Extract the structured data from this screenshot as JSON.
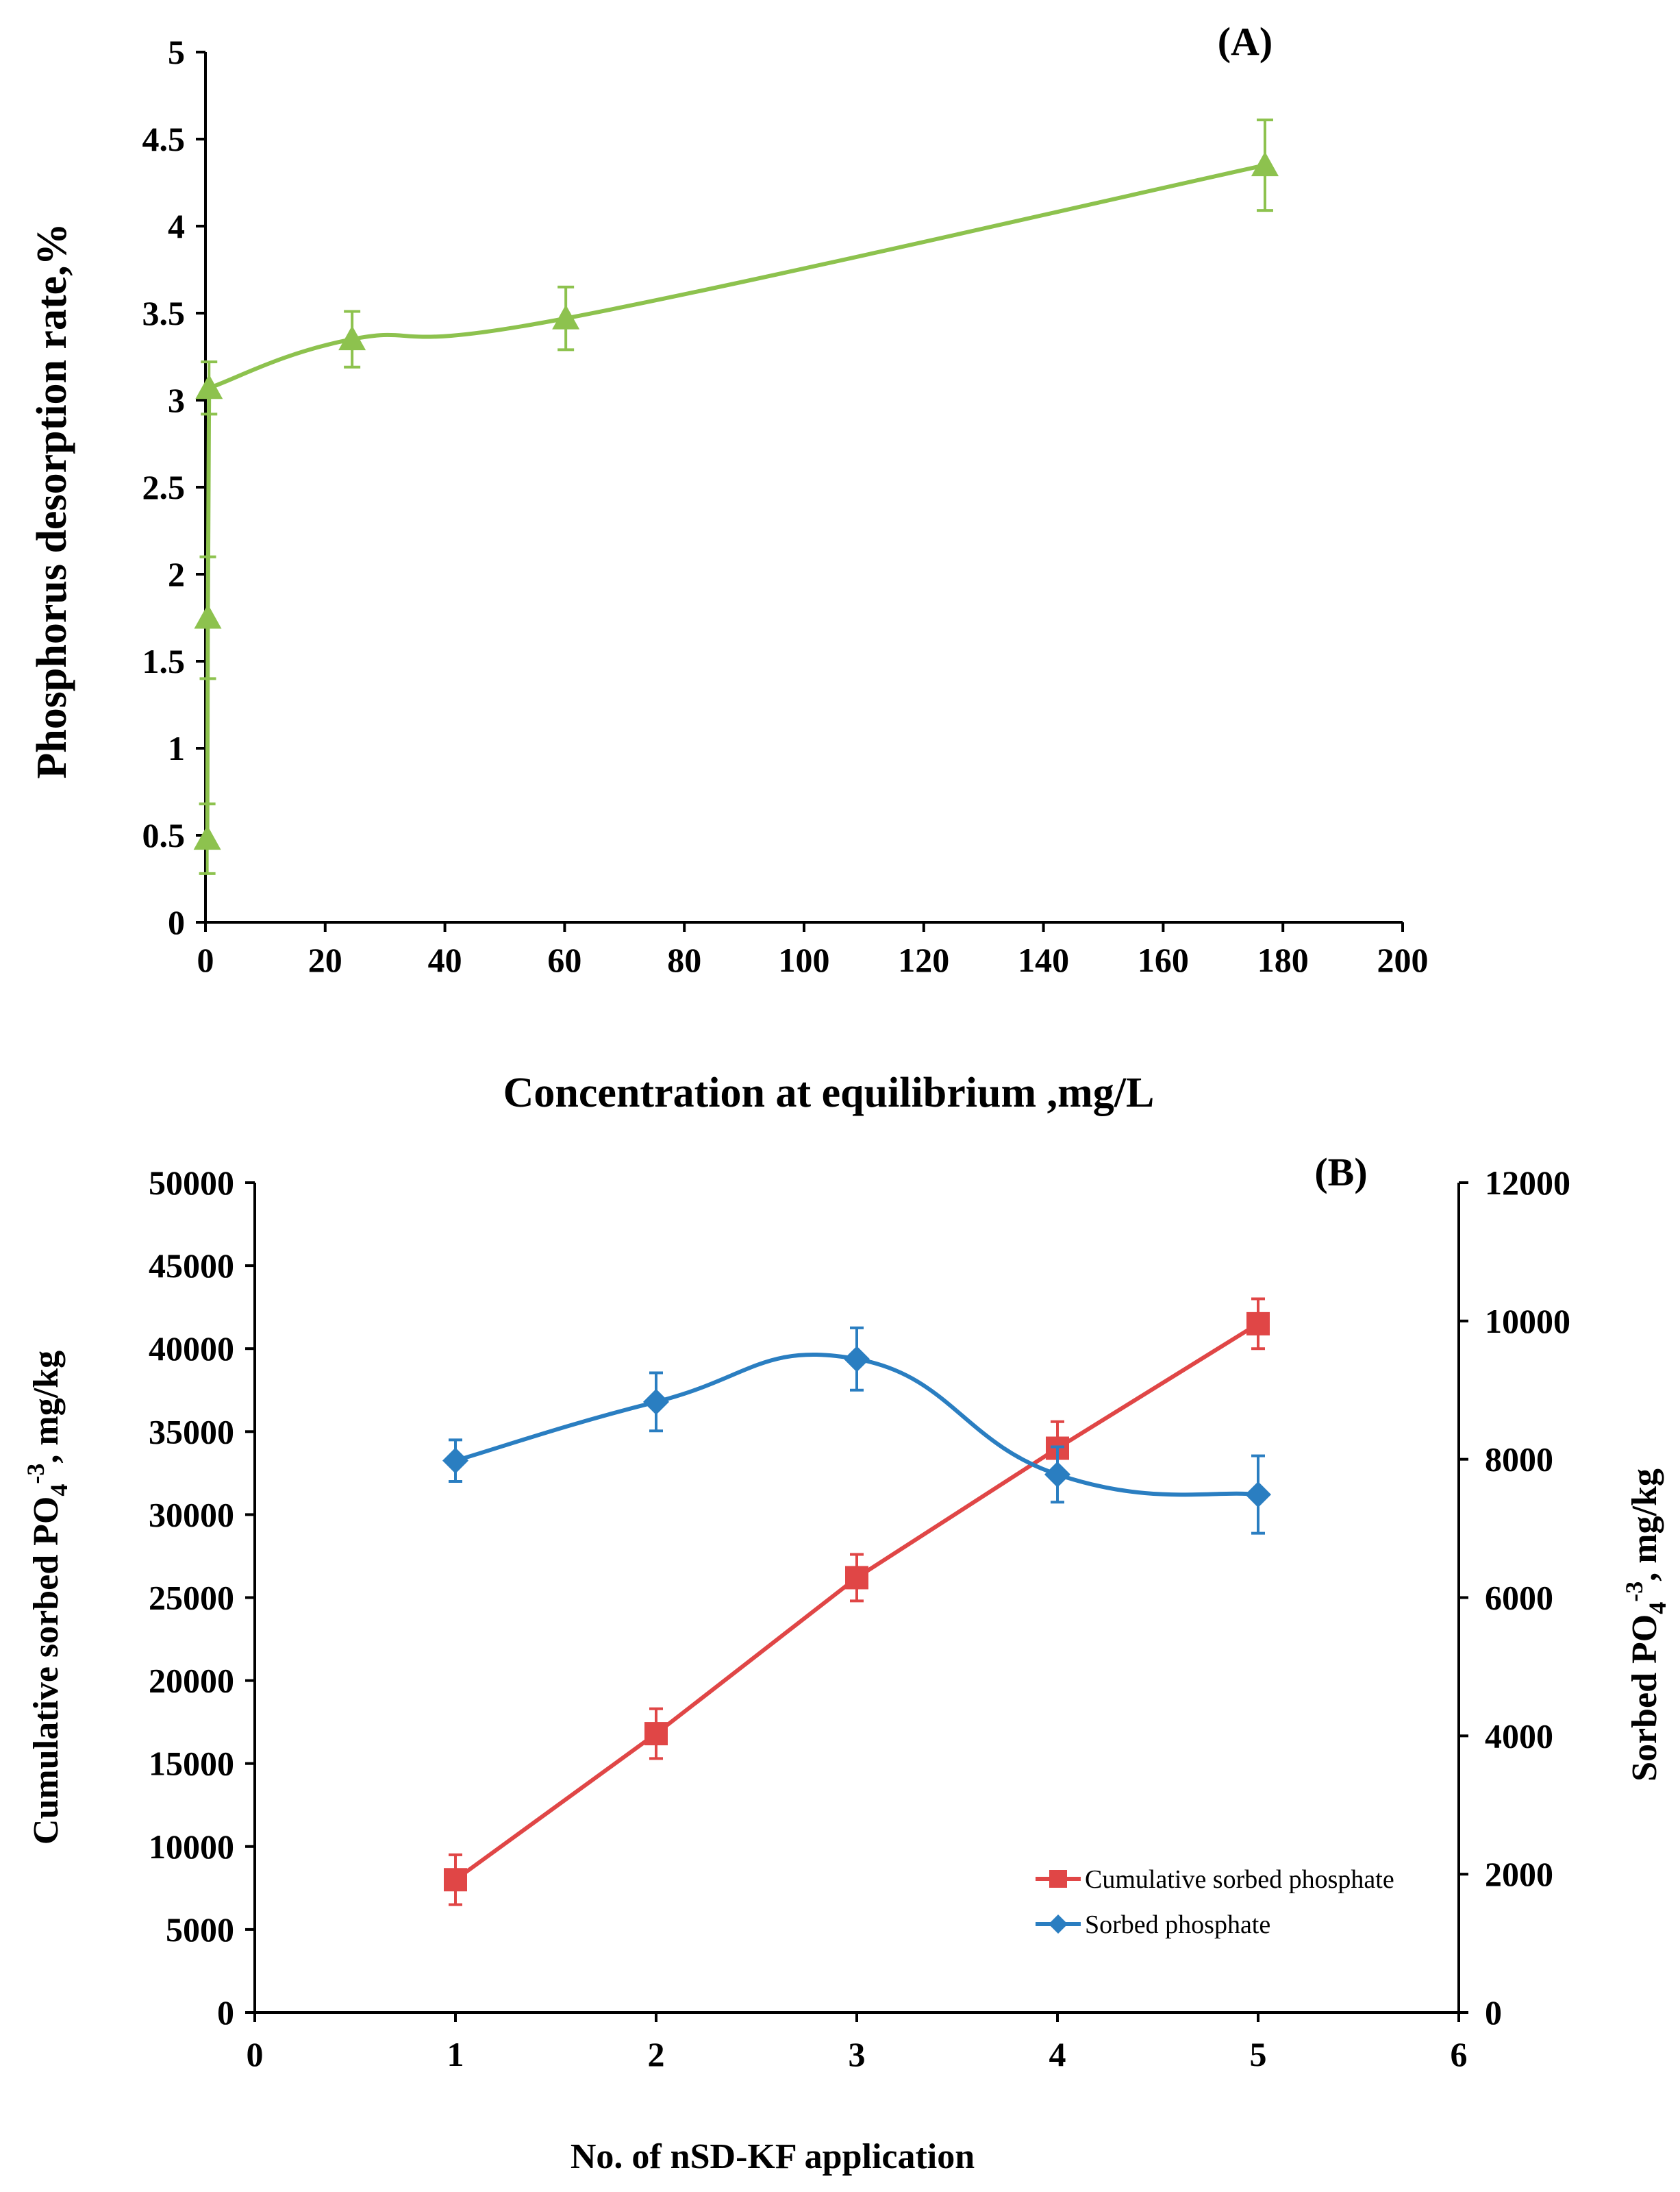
{
  "chart_data": [
    {
      "panel": "(A)",
      "type": "line",
      "title": "",
      "xlabel": "Concentration at equilibrium ,mg/L",
      "ylabel": "Phosphorus desorption rate,%",
      "xlim": [
        0,
        200
      ],
      "ylim": [
        0,
        5
      ],
      "xticks": [
        "0",
        "20",
        "40",
        "60",
        "80",
        "100",
        "120",
        "140",
        "160",
        "180",
        "200"
      ],
      "yticks": [
        "0",
        "0.5",
        "1",
        "1.5",
        "2",
        "2.5",
        "3",
        "3.5",
        "4",
        "4.5",
        "5"
      ],
      "grid": false,
      "series": [
        {
          "name": "Phosphorus desorption rate",
          "color": "#8dc24e",
          "marker": "triangle",
          "x": [
            0.3,
            0.4,
            0.6,
            24.5,
            60.2,
            177.0
          ],
          "y": [
            0.48,
            1.75,
            3.07,
            3.35,
            3.47,
            4.35
          ],
          "yerr": [
            0.2,
            0.35,
            0.15,
            0.16,
            0.18,
            0.26
          ]
        }
      ]
    },
    {
      "panel": "(B)",
      "type": "line",
      "title": "",
      "xlabel": "No. of nSD-KF application",
      "ylabel_left": "Cumulative sorbed PO4-3, mg/kg",
      "ylabel_right": "Sorbed PO4-3, mg/kg",
      "xlim": [
        0,
        6
      ],
      "ylim_left": [
        0,
        50000
      ],
      "ylim_right": [
        0,
        12000
      ],
      "xticks": [
        "0",
        "1",
        "2",
        "3",
        "4",
        "5",
        "6"
      ],
      "yticks_left": [
        "0",
        "5000",
        "10000",
        "15000",
        "20000",
        "25000",
        "30000",
        "35000",
        "40000",
        "45000",
        "50000"
      ],
      "yticks_right": [
        "0",
        "2000",
        "4000",
        "6000",
        "8000",
        "10000",
        "12000"
      ],
      "grid": false,
      "legend_position": "bottom-right",
      "series": [
        {
          "name": "Cumulative sorbed phosphate",
          "axis": "left",
          "color": "#e04646",
          "marker": "square",
          "x": [
            1,
            2,
            3,
            4,
            5
          ],
          "y": [
            8000,
            16800,
            26200,
            34000,
            41500
          ],
          "yerr": [
            1500,
            1500,
            1400,
            1600,
            1500
          ]
        },
        {
          "name": "Sorbed phosphate",
          "axis": "right",
          "color": "#2a7ec1",
          "marker": "diamond",
          "x": [
            1,
            2,
            3,
            4,
            5
          ],
          "y": [
            7980,
            8830,
            9450,
            7780,
            7490
          ],
          "yerr": [
            300,
            420,
            450,
            400,
            560
          ]
        }
      ]
    }
  ]
}
